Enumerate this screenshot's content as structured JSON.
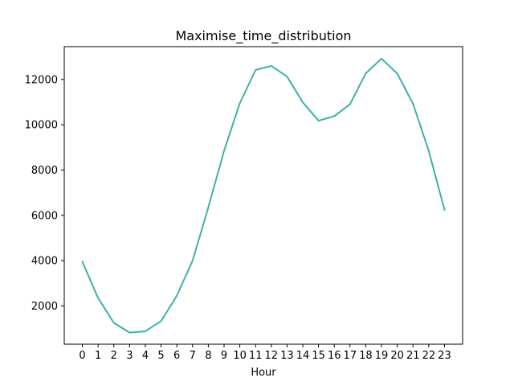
{
  "chart_data": {
    "type": "line",
    "title": "Maximise_time_distribution",
    "xlabel": "Hour",
    "ylabel": "",
    "x": [
      0,
      1,
      2,
      3,
      4,
      5,
      6,
      7,
      8,
      9,
      10,
      11,
      12,
      13,
      14,
      15,
      16,
      17,
      18,
      19,
      20,
      21,
      22,
      23
    ],
    "xtick_labels": [
      "0",
      "1",
      "2",
      "3",
      "4",
      "5",
      "6",
      "7",
      "8",
      "9",
      "10",
      "11",
      "12",
      "13",
      "14",
      "15",
      "16",
      "17",
      "18",
      "19",
      "20",
      "21",
      "22",
      "23"
    ],
    "ytick_labels": [
      "2000",
      "4000",
      "6000",
      "8000",
      "10000",
      "12000"
    ],
    "yticks": [
      2000,
      4000,
      6000,
      8000,
      10000,
      12000
    ],
    "xlim": [
      -1.15,
      24.15
    ],
    "ylim": [
      310,
      13450
    ],
    "grid": false,
    "legend": "none",
    "series": [
      {
        "color": "#3db1a8",
        "values": [
          3950,
          2350,
          1250,
          820,
          880,
          1330,
          2450,
          4000,
          6350,
          8850,
          10950,
          12420,
          12600,
          12130,
          10990,
          10180,
          10380,
          10910,
          12270,
          12920,
          12260,
          10930,
          8840,
          6250
        ]
      }
    ]
  }
}
